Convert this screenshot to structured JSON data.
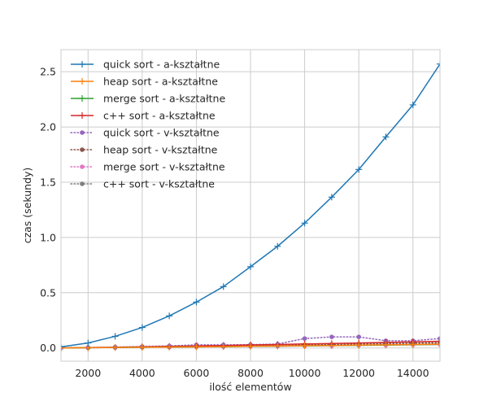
{
  "chart_data": {
    "type": "line",
    "title": "",
    "xlabel": "ilość elementów",
    "ylabel": "czas (sekundy)",
    "xlim": [
      1000,
      15000
    ],
    "ylim": [
      -0.12,
      2.7
    ],
    "x_ticks": [
      2000,
      4000,
      6000,
      8000,
      10000,
      12000,
      14000
    ],
    "y_ticks": [
      0.0,
      0.5,
      1.0,
      1.5,
      2.0,
      2.5
    ],
    "x_tick_labels": [
      "2000",
      "4000",
      "6000",
      "8000",
      "10000",
      "12000",
      "14000"
    ],
    "y_tick_labels": [
      "0.0",
      "0.5",
      "1.0",
      "1.5",
      "2.0",
      "2.5"
    ],
    "grid": true,
    "legend_position": "top-left",
    "x": [
      1000,
      2000,
      3000,
      4000,
      5000,
      6000,
      7000,
      8000,
      9000,
      10000,
      11000,
      12000,
      13000,
      14000,
      15000
    ],
    "series": [
      {
        "name": "quick sort - a-kształtne",
        "color": "#1f77b4",
        "linestyle": "solid",
        "marker": "plus",
        "values": [
          0.01,
          0.045,
          0.105,
          0.185,
          0.29,
          0.415,
          0.555,
          0.735,
          0.92,
          1.13,
          1.365,
          1.615,
          1.91,
          2.2,
          2.57
        ]
      },
      {
        "name": "heap sort - a-kształtne",
        "color": "#ff7f0e",
        "linestyle": "solid",
        "marker": "plus",
        "values": [
          0.0,
          0.002,
          0.004,
          0.006,
          0.008,
          0.01,
          0.012,
          0.015,
          0.017,
          0.02,
          0.022,
          0.025,
          0.028,
          0.031,
          0.034
        ]
      },
      {
        "name": "merge sort - a-kształtne",
        "color": "#2ca02c",
        "linestyle": "solid",
        "marker": "plus",
        "values": [
          0.0,
          0.002,
          0.004,
          0.006,
          0.008,
          0.01,
          0.012,
          0.014,
          0.016,
          0.019,
          0.021,
          0.024,
          0.026,
          0.029,
          0.032
        ]
      },
      {
        "name": "c++ sort - a-kształtne",
        "color": "#d62728",
        "linestyle": "solid",
        "marker": "plus",
        "values": [
          0.0,
          0.003,
          0.006,
          0.01,
          0.014,
          0.018,
          0.022,
          0.027,
          0.031,
          0.036,
          0.04,
          0.045,
          0.05,
          0.055,
          0.06
        ]
      },
      {
        "name": "quick sort - v-kształtne",
        "color": "#9467bd",
        "linestyle": "dotted",
        "marker": "dot",
        "values": [
          0.0,
          0.004,
          0.008,
          0.013,
          0.018,
          0.028,
          0.028,
          0.03,
          0.035,
          0.085,
          0.1,
          0.1,
          0.065,
          0.065,
          0.085
        ]
      },
      {
        "name": "heap sort - v-kształtne",
        "color": "#8c564b",
        "linestyle": "dotted",
        "marker": "dot",
        "values": [
          0.0,
          0.002,
          0.005,
          0.008,
          0.011,
          0.014,
          0.017,
          0.021,
          0.024,
          0.028,
          0.032,
          0.036,
          0.04,
          0.044,
          0.048
        ]
      },
      {
        "name": "merge sort - v-kształtne",
        "color": "#e377c2",
        "linestyle": "dotted",
        "marker": "dot",
        "values": [
          0.0,
          0.002,
          0.004,
          0.006,
          0.008,
          0.01,
          0.012,
          0.014,
          0.016,
          0.018,
          0.02,
          0.023,
          0.025,
          0.028,
          0.03
        ]
      },
      {
        "name": "c++ sort - v-kształtne",
        "color": "#7f7f7f",
        "linestyle": "dotted",
        "marker": "dot",
        "values": [
          0.0,
          0.002,
          0.004,
          0.006,
          0.009,
          0.012,
          0.014,
          0.017,
          0.02,
          0.023,
          0.026,
          0.029,
          0.032,
          0.035,
          0.038
        ]
      }
    ]
  }
}
